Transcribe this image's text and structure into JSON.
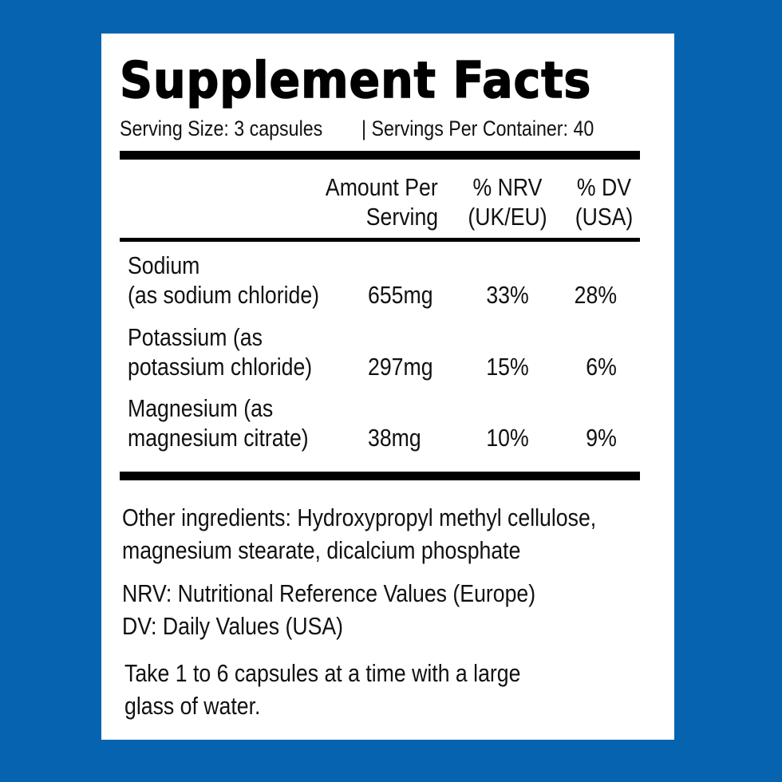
{
  "title": "Supplement Facts",
  "serving_size": "Serving Size: 3 capsules",
  "servings_per_container": "| Servings Per Container: 40",
  "columns": {
    "amount": [
      "Amount Per",
      "Serving"
    ],
    "nrv": [
      "% NRV",
      "(UK/EU)"
    ],
    "dv": [
      "% DV",
      "(USA)"
    ]
  },
  "rows": [
    {
      "name": [
        "Sodium",
        "(as sodium chloride)"
      ],
      "amount": "655mg",
      "nrv": "33%",
      "dv": "28%"
    },
    {
      "name": [
        "Potassium (as",
        "potassium chloride)"
      ],
      "amount": "297mg",
      "nrv": "15%",
      "dv": "6%"
    },
    {
      "name": [
        "Magnesium (as",
        "magnesium citrate)"
      ],
      "amount": "38mg",
      "nrv": "10%",
      "dv": "9%"
    }
  ],
  "other_ingredients": [
    "Other ingredients: Hydroxypropyl methyl cellulose,",
    "magnesium stearate, dicalcium phosphate"
  ],
  "notes": [
    "NRV: Nutritional Reference Values (Europe)",
    "DV: Daily Values (USA)"
  ],
  "directions": [
    "Take 1 to 6 capsules at a time with a large",
    "glass of water."
  ],
  "colors": {
    "background": "#0563b0",
    "panel": "#ffffff",
    "text": "#111111"
  }
}
